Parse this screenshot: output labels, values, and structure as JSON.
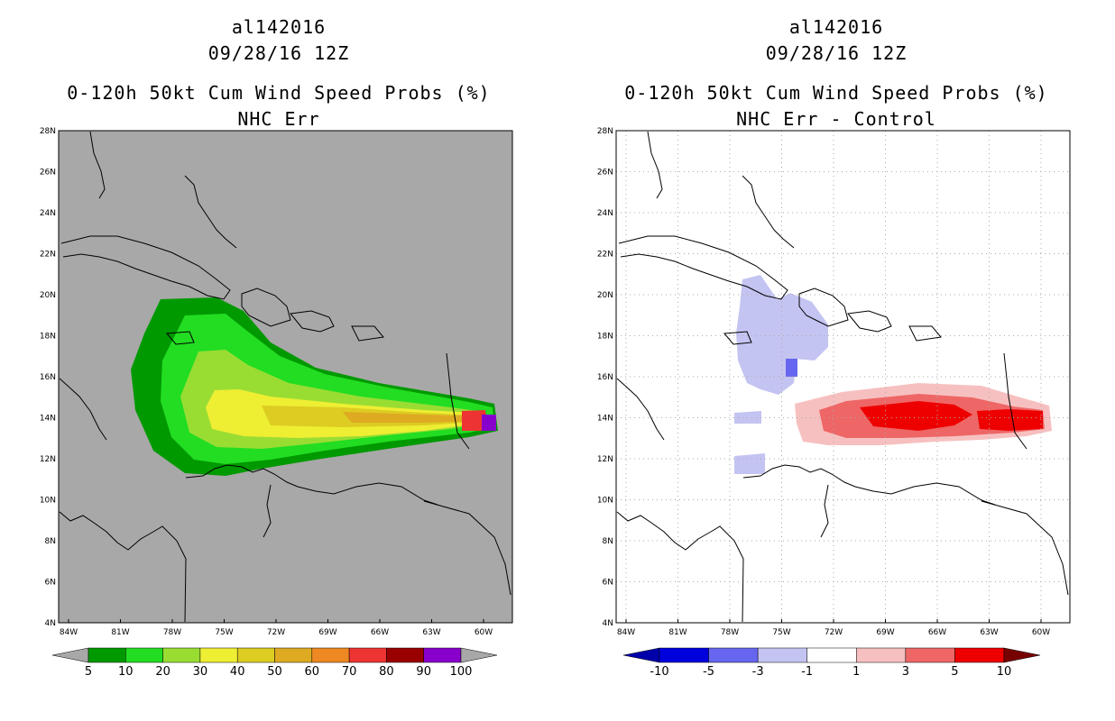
{
  "panels": [
    {
      "id": "left",
      "storm_id": "al142016",
      "datetime": "09/28/16 12Z",
      "product": "0-120h 50kt Cum Wind Speed Probs (%)",
      "subtitle": "NHC Err",
      "background": "#a8a8a8",
      "colorbar": {
        "colors": [
          "#009900",
          "#22dd22",
          "#99dd33",
          "#eeee33",
          "#ddcc22",
          "#ddaa22",
          "#ee8822",
          "#ee3333",
          "#990000",
          "#8800cc"
        ],
        "labels": [
          "5",
          "10",
          "20",
          "30",
          "40",
          "50",
          "60",
          "70",
          "80",
          "90",
          "100"
        ]
      }
    },
    {
      "id": "right",
      "storm_id": "al142016",
      "datetime": "09/28/16 12Z",
      "product": "0-120h 50kt Cum Wind Speed Probs (%)",
      "subtitle": "NHC Err - Control",
      "background": "#ffffff",
      "colorbar": {
        "colors": [
          "#0000dd",
          "#6666ee",
          "#c4c4f2",
          "#ffffff",
          "#f7c0c0",
          "#ee6666",
          "#ee0000"
        ],
        "labels": [
          "-10",
          "-5",
          "-3",
          "-1",
          "1",
          "3",
          "5",
          "10"
        ]
      }
    }
  ],
  "axes": {
    "lat_labels": [
      "28N",
      "26N",
      "24N",
      "22N",
      "20N",
      "18N",
      "16N",
      "14N",
      "12N",
      "10N",
      "8N",
      "6N",
      "4N"
    ],
    "lon_labels": [
      "84W",
      "81W",
      "78W",
      "75W",
      "72W",
      "69W",
      "66W",
      "63W",
      "60W"
    ]
  }
}
